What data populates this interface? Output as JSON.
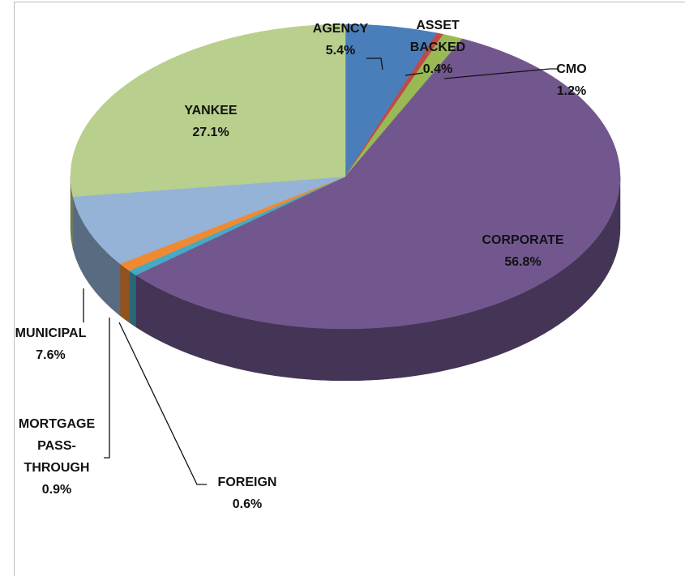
{
  "chart_data": {
    "type": "pie",
    "categories": [
      "AGENCY",
      "ASSET BACKED",
      "CMO",
      "CORPORATE",
      "FOREIGN",
      "MORTGAGE PASS-THROUGH",
      "MUNICIPAL",
      "YANKEE"
    ],
    "values": [
      5.4,
      0.4,
      1.2,
      56.8,
      0.6,
      0.9,
      7.6,
      27.1
    ],
    "value_labels": [
      "5.4%",
      "0.4%",
      "1.2%",
      "56.8%",
      "0.6%",
      "0.9%",
      "7.6%",
      "27.1%"
    ],
    "colors": [
      "#4a7ebb",
      "#be4b48",
      "#98b954",
      "#72578f",
      "#46aac5",
      "#f08a32",
      "#95b3d7",
      "#b8cf8e"
    ],
    "three_d": true
  }
}
